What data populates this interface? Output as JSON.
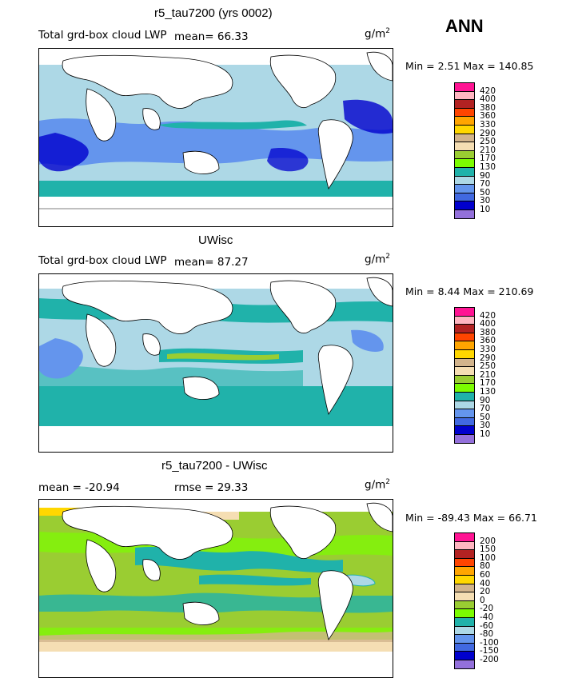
{
  "season": "ANN",
  "panels": [
    {
      "title": "r5_tau7200 (yrs 0002)",
      "left_text": "Total grd-box cloud LWP",
      "mean_text": "mean=   66.33",
      "units": "g/m",
      "units_sup": "2",
      "minmax": "Min =    2.51  Max =  140.85",
      "legend_levels": [
        "420",
        "400",
        "380",
        "360",
        "330",
        "290",
        "250",
        "210",
        "170",
        "130",
        "90",
        "70",
        "50",
        "30",
        "10"
      ],
      "legend_colors": [
        "#ff1493",
        "#ffb6c1",
        "#b22222",
        "#ff4500",
        "#ffa500",
        "#ffd700",
        "#d2b48c",
        "#f5deb3",
        "#9acd32",
        "#7cfc00",
        "#20b2aa",
        "#add8e6",
        "#6495ed",
        "#4169e1",
        "#0000cd",
        "#9370db"
      ]
    },
    {
      "title": "UWisc",
      "left_text": "Total grd-box cloud LWP",
      "mean_text": "mean=   87.27",
      "units": "g/m",
      "units_sup": "2",
      "minmax": "Min =    8.44  Max =  210.69",
      "legend_levels": [
        "420",
        "400",
        "380",
        "360",
        "330",
        "290",
        "250",
        "210",
        "170",
        "130",
        "90",
        "70",
        "50",
        "30",
        "10"
      ],
      "legend_colors": [
        "#ff1493",
        "#ffb6c1",
        "#b22222",
        "#ff4500",
        "#ffa500",
        "#ffd700",
        "#d2b48c",
        "#f5deb3",
        "#9acd32",
        "#7cfc00",
        "#20b2aa",
        "#add8e6",
        "#6495ed",
        "#4169e1",
        "#0000cd",
        "#9370db"
      ]
    },
    {
      "title": "r5_tau7200 - UWisc",
      "left_text": "mean =  -20.94",
      "mean_text": "rmse =   29.33",
      "units": "g/m",
      "units_sup": "2",
      "minmax": "Min = -89.43  Max =   66.71",
      "legend_levels": [
        "200",
        "150",
        "100",
        "80",
        "60",
        "40",
        "20",
        "0",
        "-20",
        "-40",
        "-60",
        "-80",
        "-100",
        "-150",
        "-200"
      ],
      "legend_colors": [
        "#ff1493",
        "#ffb6c1",
        "#b22222",
        "#ff4500",
        "#ffa500",
        "#ffd700",
        "#d2b48c",
        "#f5deb3",
        "#9acd32",
        "#7cfc00",
        "#20b2aa",
        "#add8e6",
        "#6495ed",
        "#4169e1",
        "#0000cd",
        "#9370db"
      ]
    }
  ]
}
